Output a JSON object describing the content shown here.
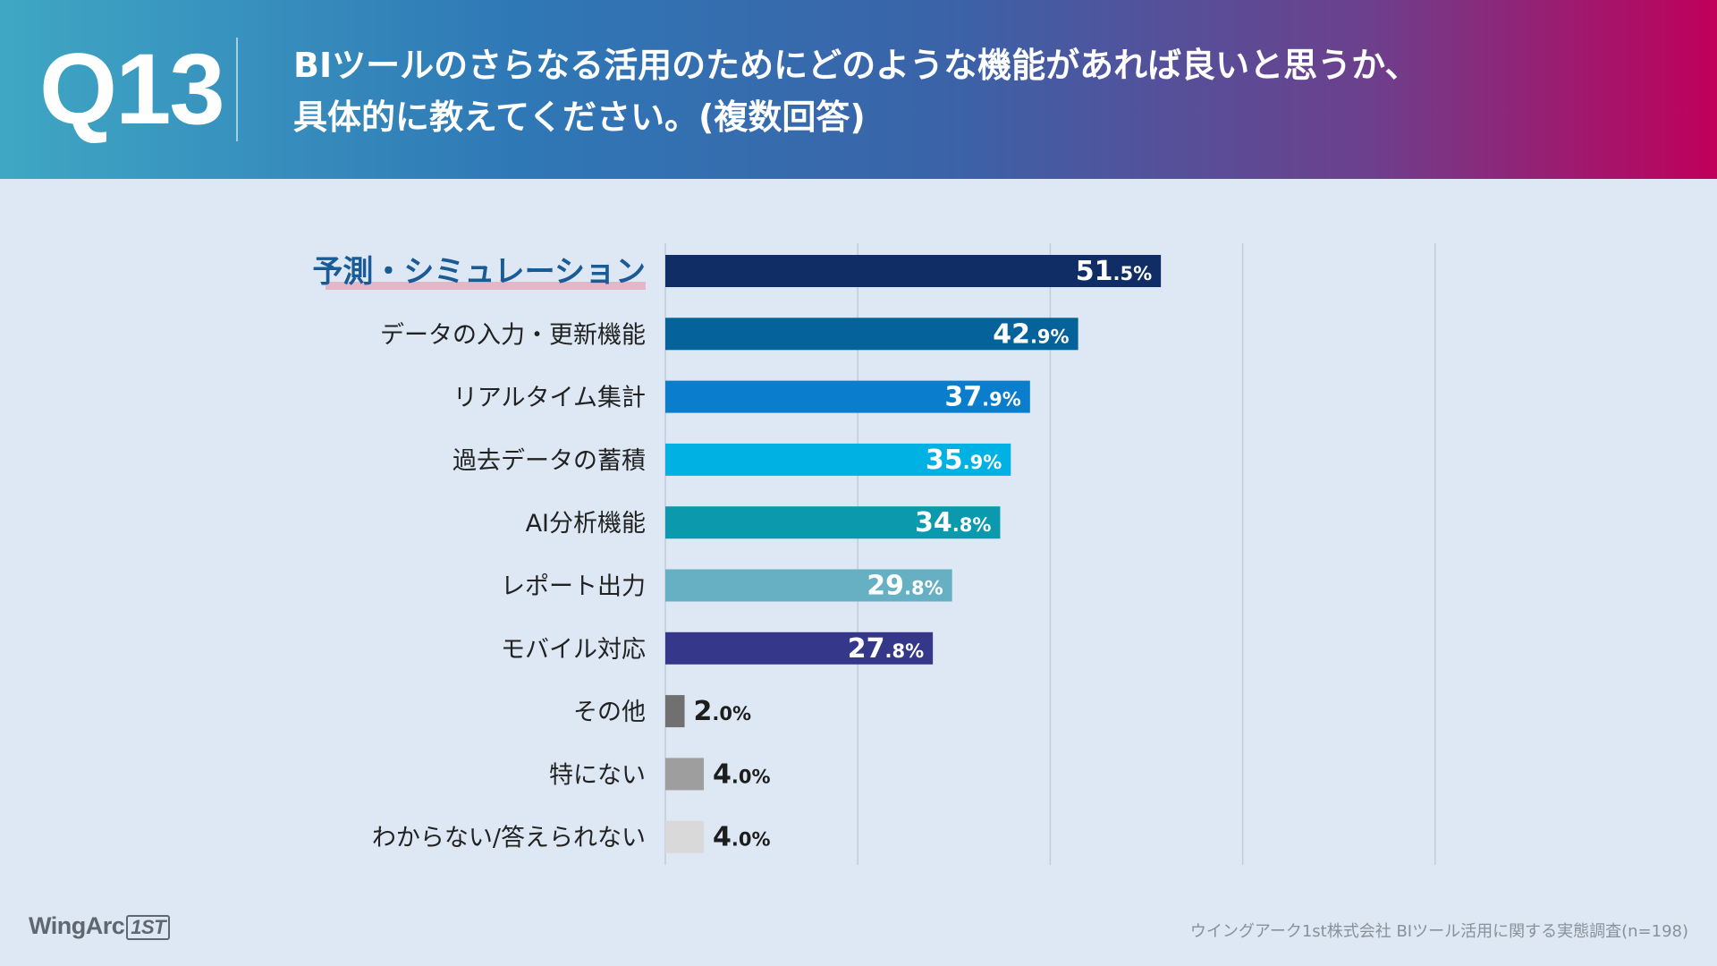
{
  "header": {
    "question_number": "Q13",
    "title_line1": "BIツールのさらなる活用のためにどのような機能があれば良いと思うか、",
    "title_line2": "具体的に教えてください。(複数回答)"
  },
  "chart_data": {
    "type": "bar",
    "orientation": "horizontal",
    "title": "BIツールのさらなる活用のためにどのような機能があれば良いと思うか、具体的に教えてください。(複数回答)",
    "unit": "%",
    "xlim": [
      0,
      100
    ],
    "grid": true,
    "highlight_category": "予測・シミュレーション",
    "categories": [
      "予測・シミュレーション",
      "データの入力・更新機能",
      "リアルタイム集計",
      "過去データの蓄積",
      "AI分析機能",
      "レポート出力",
      "モバイル対応",
      "その他",
      "特にない",
      "わからない/答えられない"
    ],
    "values": [
      51.5,
      42.9,
      37.9,
      35.9,
      34.8,
      29.8,
      27.8,
      2.0,
      4.0,
      4.0
    ],
    "colors": [
      "#112d66",
      "#06629a",
      "#0a7dcc",
      "#00b2e4",
      "#0a99ad",
      "#67b0c3",
      "#35388a",
      "#707070",
      "#9e9e9e",
      "#d9d9d9"
    ],
    "value_labels": [
      {
        "int": "51",
        "dec": ".5%"
      },
      {
        "int": "42",
        "dec": ".9%"
      },
      {
        "int": "37",
        "dec": ".9%"
      },
      {
        "int": "35",
        "dec": ".9%"
      },
      {
        "int": "34",
        "dec": ".8%"
      },
      {
        "int": "29",
        "dec": ".8%"
      },
      {
        "int": "27",
        "dec": ".8%"
      },
      {
        "int": "2",
        "dec": ".0%"
      },
      {
        "int": "4",
        "dec": ".0%"
      },
      {
        "int": "4",
        "dec": ".0%"
      }
    ]
  },
  "footer": {
    "logo_text": "WingArc",
    "logo_mark": "1ST",
    "source": "ウイングアーク1st株式会社  BIツール活用に関する実態調査(n=198)"
  },
  "colors": {
    "background": "#dde8f4",
    "highlight_text": "#1a5b96",
    "highlight_underline": "#e4b7c8",
    "label_text": "#222222"
  }
}
